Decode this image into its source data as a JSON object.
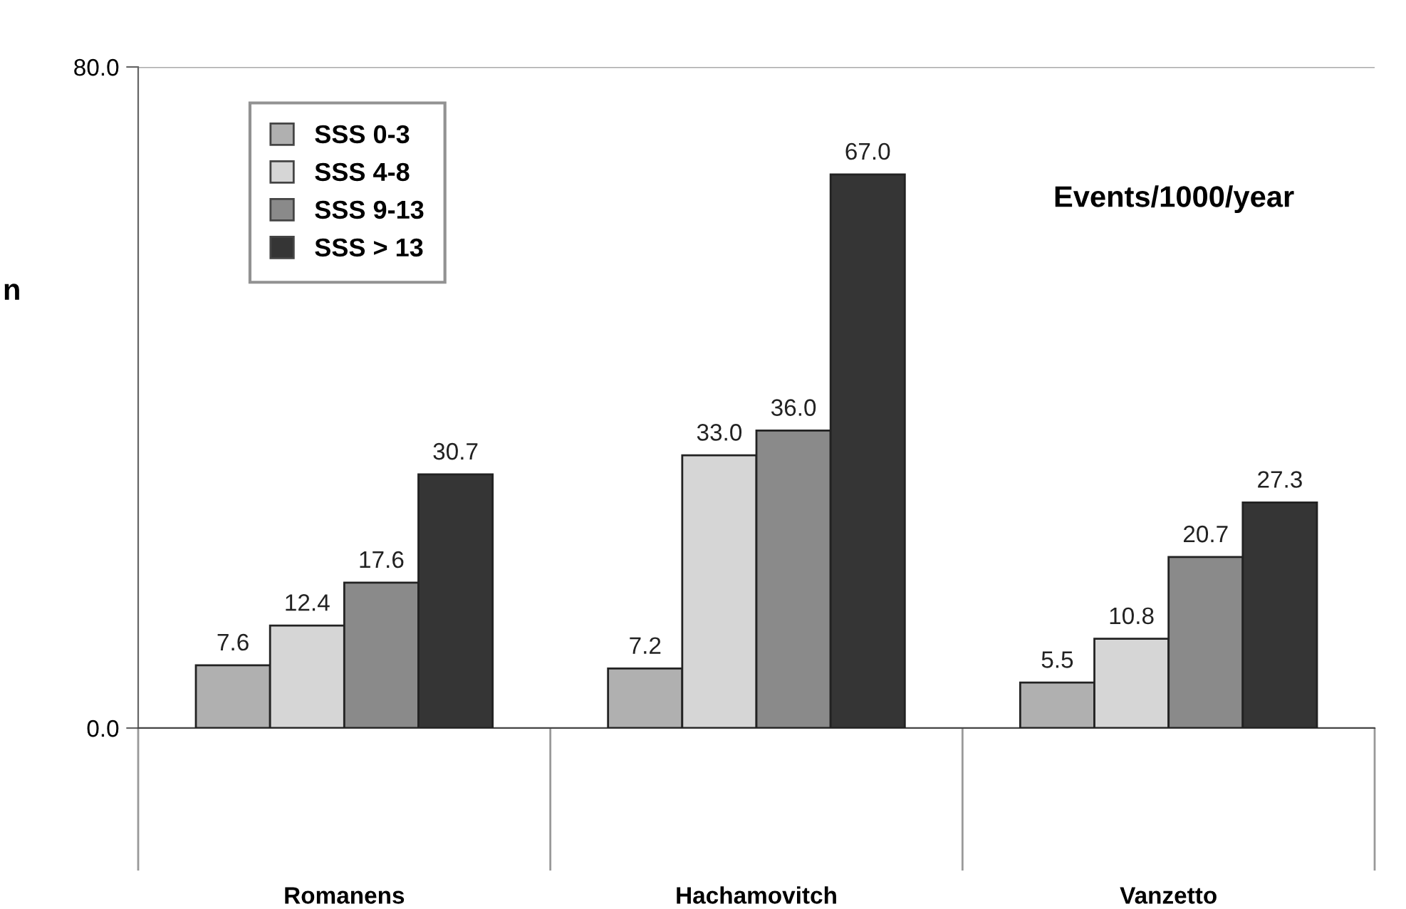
{
  "chart_data": {
    "type": "bar",
    "categories": [
      "Romanens",
      "Hachamovitch",
      "Vanzetto"
    ],
    "series": [
      {
        "name": "SSS 0-3",
        "color": "#b0b0b0",
        "values": [
          7.6,
          7.2,
          5.5
        ],
        "value_labels": [
          "7.6",
          "7.2",
          "5.5"
        ]
      },
      {
        "name": "SSS 4-8",
        "color": "#d6d6d6",
        "values": [
          12.4,
          33.0,
          10.8
        ],
        "value_labels": [
          "12.4",
          "33.0",
          "10.8"
        ]
      },
      {
        "name": "SSS 9-13",
        "color": "#8a8a8a",
        "values": [
          17.6,
          36.0,
          20.7
        ],
        "value_labels": [
          "17.6",
          "36.0",
          "20.7"
        ]
      },
      {
        "name": "SSS > 13",
        "color": "#353535",
        "values": [
          30.7,
          67.0,
          27.3
        ],
        "value_labels": [
          "30.7",
          "67.0",
          "27.3"
        ]
      }
    ],
    "ylim": [
      0,
      80
    ],
    "yticks": [
      {
        "value": 0,
        "label": "0.0"
      },
      {
        "value": 80,
        "label": "80.0"
      }
    ],
    "grid": "y",
    "legend": "top left",
    "annotations": [
      "Events/1000/year",
      "n"
    ]
  }
}
